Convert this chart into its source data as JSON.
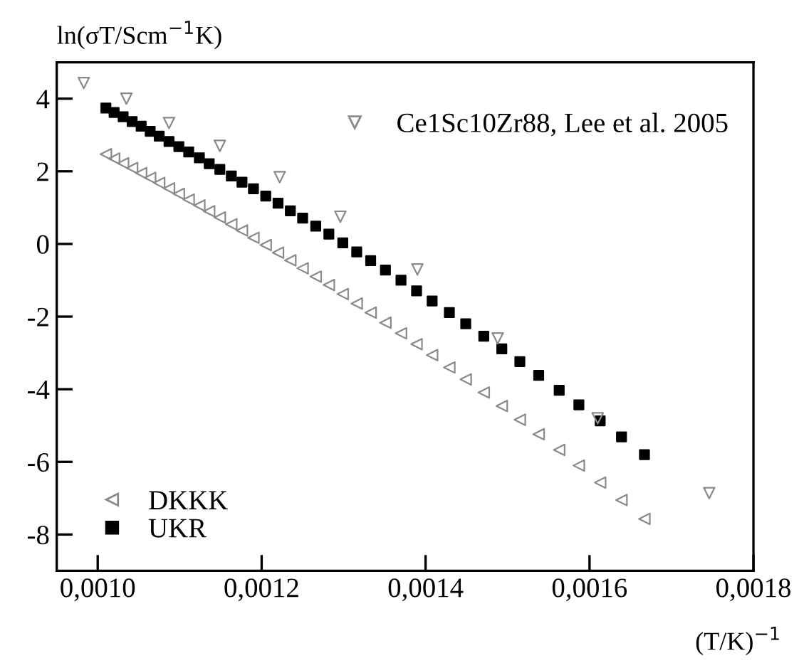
{
  "chart_data": {
    "type": "scatter",
    "ylabel": "ln(σT/Scm$^{−1}$K)",
    "xlabel": "(T/K)$^{−1}$",
    "x": [
      0.00101,
      0.00102,
      0.001031,
      0.001042,
      0.001053,
      0.001064,
      0.001075,
      0.001087,
      0.001099,
      0.001111,
      0.001124,
      0.001136,
      0.001149,
      0.001163,
      0.001176,
      0.00119,
      0.001205,
      0.00122,
      0.001235,
      0.00125,
      0.001266,
      0.001282,
      0.001299,
      0.001316,
      0.001333,
      0.001351,
      0.00137,
      0.001389,
      0.001408,
      0.001429,
      0.001449,
      0.001471,
      0.001493,
      0.001515,
      0.001538,
      0.001563,
      0.001587,
      0.001613,
      0.001639,
      0.001667
    ],
    "series": [
      {
        "name": "DKKK",
        "color": "#8a8a8a",
        "marker": "triangle-left",
        "values": [
          2.47,
          2.35,
          2.22,
          2.09,
          1.95,
          1.82,
          1.68,
          1.53,
          1.38,
          1.22,
          1.06,
          0.9,
          0.73,
          0.54,
          0.37,
          0.17,
          -0.03,
          -0.24,
          -0.45,
          -0.67,
          -0.9,
          -1.13,
          -1.38,
          -1.64,
          -1.89,
          -2.17,
          -2.46,
          -2.76,
          -3.06,
          -3.4,
          -3.73,
          -4.09,
          -4.46,
          -4.84,
          -5.24,
          -5.67,
          -6.1,
          -6.57,
          -7.05,
          -7.57
        ]
      },
      {
        "name": "UKR",
        "color": "#000000",
        "marker": "square",
        "values": [
          3.74,
          3.62,
          3.5,
          3.37,
          3.24,
          3.1,
          2.97,
          2.82,
          2.68,
          2.53,
          2.37,
          2.21,
          2.05,
          1.87,
          1.7,
          1.52,
          1.32,
          1.12,
          0.91,
          0.71,
          0.49,
          0.27,
          0.03,
          -0.22,
          -0.46,
          -0.72,
          -1.0,
          -1.29,
          -1.57,
          -1.89,
          -2.2,
          -2.54,
          -2.89,
          -3.24,
          -3.62,
          -4.03,
          -4.43,
          -4.87,
          -5.31,
          -5.8
        ]
      },
      {
        "name": "Ce1Sc10Zr88, Lee et al. 2005",
        "color": "#8a8a8a",
        "marker": "triangle-down",
        "x": [
          0.000983,
          0.001035,
          0.001087,
          0.001149,
          0.001222,
          0.001296,
          0.00139,
          0.001488,
          0.00161,
          0.001746
        ],
        "values": [
          4.43,
          4.0,
          3.33,
          2.7,
          1.84,
          0.75,
          -0.7,
          -2.6,
          -4.8,
          -6.86
        ]
      }
    ],
    "xlim": [
      0.00095,
      0.0018
    ],
    "xticks": [
      {
        "value": 0.001,
        "label": "0,0010"
      },
      {
        "value": 0.0012,
        "label": "0,0012"
      },
      {
        "value": 0.0014,
        "label": "0,0014"
      },
      {
        "value": 0.0016,
        "label": "0,0016"
      },
      {
        "value": 0.0018,
        "label": "0,0018"
      }
    ],
    "ylim": [
      -9,
      5
    ],
    "yticks": [
      -8,
      -6,
      -4,
      -2,
      0,
      2,
      4
    ],
    "grid": false,
    "legend": "bottom left"
  }
}
